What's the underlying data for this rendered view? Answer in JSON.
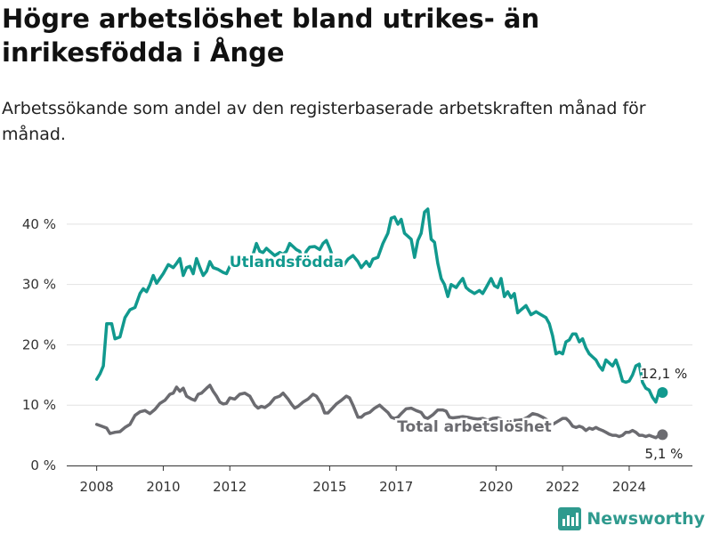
{
  "title": "Högre arbetslöshet bland utrikes- än inrikesfödda i Ånge",
  "subtitle": "Arbetssökande som andel av den registerbaserade arbetskraften månad för månad.",
  "brand": {
    "name": "Newsworthy",
    "color": "#2f9a8e"
  },
  "chart_data": {
    "type": "line",
    "title": "Högre arbetslöshet bland utrikes- än inrikesfödda i Ånge",
    "subtitle": "Arbetssökande som andel av den registerbaserade arbetskraften månad för månad.",
    "xlabel": "",
    "ylabel": "",
    "x_ticks": [
      "2008",
      "2010",
      "2012",
      "2015",
      "2017",
      "2020",
      "2022",
      "2024"
    ],
    "y_ticks": [
      "0 %",
      "10 %",
      "20 %",
      "30 %",
      "40 %"
    ],
    "ylim": [
      0,
      45
    ],
    "grid": true,
    "legend": "inline labels",
    "series": [
      {
        "name": "Utlandsfödda",
        "color": "#11998e",
        "end_label": "12,1 %",
        "points": [
          [
            2008.0,
            14.3
          ],
          [
            2008.1,
            15.2
          ],
          [
            2008.2,
            16.5
          ],
          [
            2008.3,
            23.5
          ],
          [
            2008.45,
            23.5
          ],
          [
            2008.55,
            21.0
          ],
          [
            2008.7,
            21.3
          ],
          [
            2008.85,
            24.5
          ],
          [
            2009.0,
            25.8
          ],
          [
            2009.15,
            26.2
          ],
          [
            2009.3,
            28.5
          ],
          [
            2009.4,
            29.3
          ],
          [
            2009.5,
            28.8
          ],
          [
            2009.6,
            30.0
          ],
          [
            2009.7,
            31.5
          ],
          [
            2009.8,
            30.2
          ],
          [
            2009.9,
            31.0
          ],
          [
            2010.0,
            31.8
          ],
          [
            2010.15,
            33.3
          ],
          [
            2010.3,
            32.8
          ],
          [
            2010.4,
            33.5
          ],
          [
            2010.5,
            34.3
          ],
          [
            2010.6,
            31.5
          ],
          [
            2010.7,
            32.8
          ],
          [
            2010.8,
            33.0
          ],
          [
            2010.9,
            31.8
          ],
          [
            2011.0,
            34.3
          ],
          [
            2011.1,
            32.8
          ],
          [
            2011.2,
            31.5
          ],
          [
            2011.3,
            32.2
          ],
          [
            2011.4,
            33.8
          ],
          [
            2011.5,
            32.8
          ],
          [
            2011.65,
            32.5
          ],
          [
            2011.8,
            32.0
          ],
          [
            2011.9,
            31.8
          ],
          [
            2012.0,
            33.0
          ],
          [
            2012.2,
            34.0
          ],
          [
            2012.4,
            33.8
          ],
          [
            2012.55,
            34.2
          ],
          [
            2012.7,
            35.0
          ],
          [
            2012.8,
            36.8
          ],
          [
            2012.9,
            35.5
          ],
          [
            2013.0,
            35.3
          ],
          [
            2013.1,
            36.0
          ],
          [
            2013.2,
            35.5
          ],
          [
            2013.35,
            34.8
          ],
          [
            2013.5,
            35.3
          ],
          [
            2013.6,
            35.0
          ],
          [
            2013.7,
            35.5
          ],
          [
            2013.8,
            36.8
          ],
          [
            2013.9,
            36.3
          ],
          [
            2014.0,
            35.8
          ],
          [
            2014.1,
            35.5
          ],
          [
            2014.2,
            34.0
          ],
          [
            2014.3,
            35.5
          ],
          [
            2014.4,
            36.2
          ],
          [
            2014.55,
            36.3
          ],
          [
            2014.7,
            35.8
          ],
          [
            2014.8,
            36.8
          ],
          [
            2014.9,
            37.3
          ],
          [
            2015.0,
            36.0
          ],
          [
            2015.1,
            34.5
          ],
          [
            2015.25,
            33.8
          ],
          [
            2015.4,
            33.0
          ],
          [
            2015.55,
            34.2
          ],
          [
            2015.7,
            34.8
          ],
          [
            2015.85,
            33.8
          ],
          [
            2015.95,
            32.8
          ],
          [
            2016.1,
            33.8
          ],
          [
            2016.2,
            33.0
          ],
          [
            2016.3,
            34.2
          ],
          [
            2016.45,
            34.5
          ],
          [
            2016.6,
            36.8
          ],
          [
            2016.75,
            38.5
          ],
          [
            2016.85,
            41.0
          ],
          [
            2016.95,
            41.2
          ],
          [
            2017.05,
            40.0
          ],
          [
            2017.15,
            40.8
          ],
          [
            2017.25,
            38.5
          ],
          [
            2017.35,
            38.0
          ],
          [
            2017.45,
            37.5
          ],
          [
            2017.55,
            34.5
          ],
          [
            2017.65,
            37.3
          ],
          [
            2017.75,
            38.5
          ],
          [
            2017.85,
            42.0
          ],
          [
            2017.95,
            42.5
          ],
          [
            2018.05,
            37.5
          ],
          [
            2018.15,
            37.0
          ],
          [
            2018.25,
            33.5
          ],
          [
            2018.35,
            31.0
          ],
          [
            2018.45,
            30.0
          ],
          [
            2018.55,
            28.0
          ],
          [
            2018.65,
            30.0
          ],
          [
            2018.8,
            29.5
          ],
          [
            2018.9,
            30.3
          ],
          [
            2019.0,
            31.0
          ],
          [
            2019.1,
            29.5
          ],
          [
            2019.2,
            29.0
          ],
          [
            2019.35,
            28.5
          ],
          [
            2019.5,
            29.0
          ],
          [
            2019.6,
            28.5
          ],
          [
            2019.7,
            29.5
          ],
          [
            2019.85,
            31.0
          ],
          [
            2019.95,
            29.8
          ],
          [
            2020.05,
            29.5
          ],
          [
            2020.15,
            31.0
          ],
          [
            2020.25,
            28.0
          ],
          [
            2020.35,
            28.8
          ],
          [
            2020.45,
            27.8
          ],
          [
            2020.55,
            28.5
          ],
          [
            2020.65,
            25.3
          ],
          [
            2020.75,
            25.8
          ],
          [
            2020.9,
            26.5
          ],
          [
            2021.05,
            25.0
          ],
          [
            2021.2,
            25.5
          ],
          [
            2021.35,
            25.0
          ],
          [
            2021.5,
            24.5
          ],
          [
            2021.6,
            23.5
          ],
          [
            2021.7,
            21.5
          ],
          [
            2021.8,
            18.5
          ],
          [
            2021.9,
            18.8
          ],
          [
            2022.0,
            18.5
          ],
          [
            2022.1,
            20.5
          ],
          [
            2022.2,
            20.8
          ],
          [
            2022.3,
            21.8
          ],
          [
            2022.4,
            21.8
          ],
          [
            2022.5,
            20.5
          ],
          [
            2022.6,
            21.0
          ],
          [
            2022.7,
            19.5
          ],
          [
            2022.8,
            18.5
          ],
          [
            2022.9,
            18.0
          ],
          [
            2023.0,
            17.5
          ],
          [
            2023.1,
            16.5
          ],
          [
            2023.2,
            15.8
          ],
          [
            2023.3,
            17.5
          ],
          [
            2023.4,
            17.0
          ],
          [
            2023.5,
            16.5
          ],
          [
            2023.6,
            17.5
          ],
          [
            2023.7,
            16.0
          ],
          [
            2023.8,
            14.0
          ],
          [
            2023.9,
            13.8
          ],
          [
            2024.0,
            14.0
          ],
          [
            2024.1,
            15.0
          ],
          [
            2024.2,
            16.5
          ],
          [
            2024.3,
            16.8
          ],
          [
            2024.4,
            13.8
          ],
          [
            2024.5,
            12.8
          ],
          [
            2024.6,
            12.5
          ],
          [
            2024.7,
            11.3
          ],
          [
            2024.8,
            10.5
          ],
          [
            2024.9,
            12.3
          ],
          [
            2025.0,
            12.1
          ]
        ]
      },
      {
        "name": "Total arbetslöshet",
        "color": "#6b6b70",
        "end_label": "5,1 %",
        "points": [
          [
            2008.0,
            6.8
          ],
          [
            2008.15,
            6.5
          ],
          [
            2008.3,
            6.2
          ],
          [
            2008.4,
            5.3
          ],
          [
            2008.55,
            5.5
          ],
          [
            2008.7,
            5.6
          ],
          [
            2008.85,
            6.3
          ],
          [
            2009.0,
            6.8
          ],
          [
            2009.15,
            8.3
          ],
          [
            2009.3,
            8.9
          ],
          [
            2009.45,
            9.1
          ],
          [
            2009.6,
            8.6
          ],
          [
            2009.75,
            9.3
          ],
          [
            2009.9,
            10.3
          ],
          [
            2010.05,
            10.8
          ],
          [
            2010.2,
            11.8
          ],
          [
            2010.3,
            12.0
          ],
          [
            2010.4,
            13.0
          ],
          [
            2010.5,
            12.3
          ],
          [
            2010.6,
            12.8
          ],
          [
            2010.7,
            11.5
          ],
          [
            2010.85,
            11.0
          ],
          [
            2010.95,
            10.8
          ],
          [
            2011.05,
            11.8
          ],
          [
            2011.15,
            12.0
          ],
          [
            2011.3,
            12.8
          ],
          [
            2011.4,
            13.3
          ],
          [
            2011.5,
            12.3
          ],
          [
            2011.6,
            11.5
          ],
          [
            2011.7,
            10.5
          ],
          [
            2011.8,
            10.2
          ],
          [
            2011.9,
            10.3
          ],
          [
            2012.0,
            11.2
          ],
          [
            2012.15,
            11.0
          ],
          [
            2012.3,
            11.8
          ],
          [
            2012.45,
            12.0
          ],
          [
            2012.6,
            11.5
          ],
          [
            2012.75,
            10.0
          ],
          [
            2012.85,
            9.5
          ],
          [
            2012.95,
            9.8
          ],
          [
            2013.05,
            9.6
          ],
          [
            2013.2,
            10.2
          ],
          [
            2013.35,
            11.2
          ],
          [
            2013.5,
            11.5
          ],
          [
            2013.6,
            12.0
          ],
          [
            2013.75,
            11.0
          ],
          [
            2013.85,
            10.2
          ],
          [
            2013.95,
            9.5
          ],
          [
            2014.05,
            9.8
          ],
          [
            2014.2,
            10.5
          ],
          [
            2014.35,
            11.0
          ],
          [
            2014.5,
            11.8
          ],
          [
            2014.6,
            11.5
          ],
          [
            2014.75,
            10.2
          ],
          [
            2014.85,
            8.7
          ],
          [
            2014.95,
            8.7
          ],
          [
            2015.05,
            9.3
          ],
          [
            2015.2,
            10.2
          ],
          [
            2015.35,
            10.8
          ],
          [
            2015.5,
            11.5
          ],
          [
            2015.6,
            11.2
          ],
          [
            2015.7,
            10.0
          ],
          [
            2015.85,
            8.0
          ],
          [
            2015.95,
            8.0
          ],
          [
            2016.05,
            8.5
          ],
          [
            2016.2,
            8.8
          ],
          [
            2016.35,
            9.5
          ],
          [
            2016.5,
            10.0
          ],
          [
            2016.6,
            9.5
          ],
          [
            2016.75,
            8.8
          ],
          [
            2016.85,
            8.0
          ],
          [
            2016.95,
            7.8
          ],
          [
            2017.05,
            8.0
          ],
          [
            2017.15,
            8.6
          ],
          [
            2017.3,
            9.4
          ],
          [
            2017.45,
            9.5
          ],
          [
            2017.6,
            9.1
          ],
          [
            2017.75,
            8.8
          ],
          [
            2017.85,
            8.0
          ],
          [
            2017.95,
            7.8
          ],
          [
            2018.1,
            8.4
          ],
          [
            2018.25,
            9.2
          ],
          [
            2018.4,
            9.2
          ],
          [
            2018.5,
            9.0
          ],
          [
            2018.6,
            8.0
          ],
          [
            2018.7,
            7.9
          ],
          [
            2018.85,
            8.0
          ],
          [
            2019.0,
            8.1
          ],
          [
            2019.15,
            8.0
          ],
          [
            2019.3,
            7.8
          ],
          [
            2019.45,
            7.7
          ],
          [
            2019.6,
            7.8
          ],
          [
            2019.75,
            7.5
          ],
          [
            2019.9,
            7.8
          ],
          [
            2020.05,
            7.9
          ],
          [
            2020.2,
            7.6
          ],
          [
            2020.35,
            7.5
          ],
          [
            2020.5,
            7.5
          ],
          [
            2020.65,
            7.5
          ],
          [
            2020.8,
            7.6
          ],
          [
            2020.95,
            8.0
          ],
          [
            2021.1,
            8.6
          ],
          [
            2021.25,
            8.4
          ],
          [
            2021.4,
            8.0
          ],
          [
            2021.55,
            7.5
          ],
          [
            2021.7,
            6.8
          ],
          [
            2021.85,
            7.3
          ],
          [
            2022.0,
            7.8
          ],
          [
            2022.1,
            7.8
          ],
          [
            2022.2,
            7.3
          ],
          [
            2022.3,
            6.5
          ],
          [
            2022.4,
            6.3
          ],
          [
            2022.5,
            6.5
          ],
          [
            2022.6,
            6.3
          ],
          [
            2022.7,
            5.8
          ],
          [
            2022.8,
            6.2
          ],
          [
            2022.9,
            6.0
          ],
          [
            2023.0,
            6.3
          ],
          [
            2023.1,
            6.0
          ],
          [
            2023.2,
            5.8
          ],
          [
            2023.3,
            5.5
          ],
          [
            2023.4,
            5.2
          ],
          [
            2023.5,
            5.0
          ],
          [
            2023.6,
            5.0
          ],
          [
            2023.7,
            4.8
          ],
          [
            2023.8,
            5.0
          ],
          [
            2023.9,
            5.5
          ],
          [
            2024.0,
            5.5
          ],
          [
            2024.1,
            5.8
          ],
          [
            2024.2,
            5.5
          ],
          [
            2024.3,
            5.0
          ],
          [
            2024.4,
            5.0
          ],
          [
            2024.5,
            4.8
          ],
          [
            2024.6,
            5.0
          ],
          [
            2024.7,
            4.8
          ],
          [
            2024.8,
            4.6
          ],
          [
            2024.9,
            5.0
          ],
          [
            2025.0,
            5.1
          ]
        ]
      }
    ]
  }
}
